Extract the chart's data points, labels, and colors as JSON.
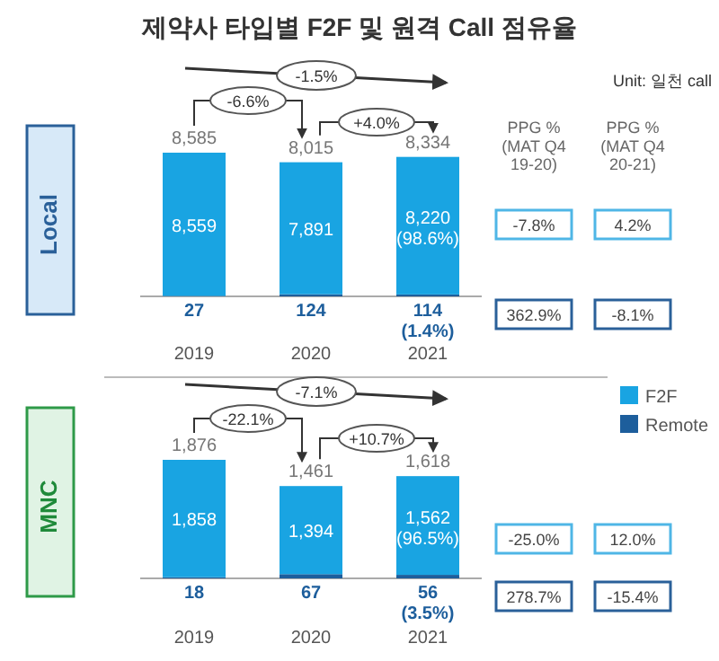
{
  "chart_data": [
    {
      "type": "bar",
      "title": "제약사 타입별 F2F 및 원격 Call 점유율",
      "ylabel": "Local",
      "stacked": true,
      "legend": "bottom right",
      "categories": [
        "2019",
        "2020",
        "2021"
      ],
      "series": [
        {
          "name": "Remote",
          "color": "#1d5e9c",
          "values": [
            27,
            124,
            114
          ],
          "value_labels": [
            "27",
            "124",
            "114 (1.4%)"
          ]
        },
        {
          "name": "F2F",
          "color": "#19a4e2",
          "values": [
            8559,
            7891,
            8220
          ],
          "value_labels": [
            "8,559",
            "7,891",
            "8,220 (98.6%)"
          ]
        }
      ],
      "totals": [
        "8,585",
        "8,015",
        "8,334"
      ],
      "annotations": [
        "Unit: 일천 call",
        "PPG % (MAT Q4 19-20)",
        "PPG % (MAT Q4 20-21)",
        "-1.5%",
        "-6.6%",
        "+4.0%",
        "-7.8%",
        "4.2%",
        "362.9%",
        "-8.1%"
      ]
    },
    {
      "type": "bar",
      "ylabel": "MNC",
      "stacked": true,
      "categories": [
        "2019",
        "2020",
        "2021"
      ],
      "series": [
        {
          "color": "#1d5e9c",
          "values": [
            18,
            67,
            56
          ],
          "value_labels": [
            "18",
            "67",
            "56 (3.5%)"
          ]
        },
        {
          "color": "#19a4e2",
          "values": [
            1858,
            1394,
            1562
          ],
          "value_labels": [
            "1,858",
            "1,394",
            "1,562 (96.5%)"
          ]
        }
      ],
      "totals": [
        "1,876",
        "1,461",
        "1,618"
      ],
      "annotations": [
        "-7.1%",
        "-22.1%",
        "+10.7%",
        "-25.0%",
        "12.0%",
        "278.7%",
        "-15.4%"
      ]
    }
  ]
}
